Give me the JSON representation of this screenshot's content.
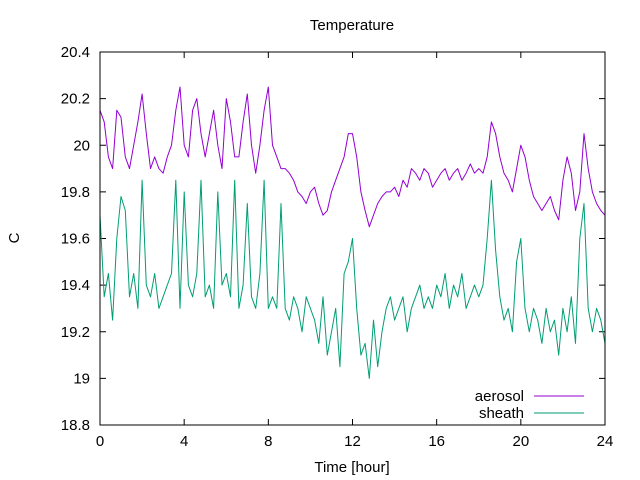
{
  "chart_data": {
    "type": "line",
    "title": "Temperature",
    "xlabel": "Time [hour]",
    "ylabel": "C",
    "xlim": [
      0,
      24
    ],
    "ylim": [
      18.8,
      20.4
    ],
    "xticks": [
      0,
      4,
      8,
      12,
      16,
      20,
      24
    ],
    "xtick_labels": [
      "0",
      "4",
      "8",
      "12",
      "16",
      "20",
      "24"
    ],
    "yticks": [
      18.8,
      19.0,
      19.2,
      19.4,
      19.6,
      19.8,
      20.0,
      20.2,
      20.4
    ],
    "ytick_labels": [
      "18.8",
      "19",
      "19.2",
      "19.4",
      "19.6",
      "19.8",
      "20",
      "20.2",
      "20.4"
    ],
    "grid": false,
    "legend_position": "bottom-right",
    "series": [
      {
        "name": "aerosol",
        "color": "#9400d3",
        "x": [
          0,
          0.2,
          0.4,
          0.6,
          0.8,
          1.0,
          1.2,
          1.4,
          1.6,
          1.8,
          2.0,
          2.2,
          2.4,
          2.6,
          2.8,
          3.0,
          3.2,
          3.4,
          3.6,
          3.8,
          4.0,
          4.2,
          4.4,
          4.6,
          4.8,
          5.0,
          5.2,
          5.4,
          5.6,
          5.8,
          6.0,
          6.2,
          6.4,
          6.6,
          6.8,
          7.0,
          7.2,
          7.4,
          7.6,
          7.8,
          8.0,
          8.2,
          8.4,
          8.6,
          8.8,
          9.0,
          9.2,
          9.4,
          9.6,
          9.8,
          10.0,
          10.2,
          10.4,
          10.6,
          10.8,
          11.0,
          11.2,
          11.4,
          11.6,
          11.8,
          12.0,
          12.2,
          12.4,
          12.6,
          12.8,
          13.0,
          13.2,
          13.4,
          13.6,
          13.8,
          14.0,
          14.2,
          14.4,
          14.6,
          14.8,
          15.0,
          15.2,
          15.4,
          15.6,
          15.8,
          16.0,
          16.2,
          16.4,
          16.6,
          16.8,
          17.0,
          17.2,
          17.4,
          17.6,
          17.8,
          18.0,
          18.2,
          18.4,
          18.6,
          18.8,
          19.0,
          19.2,
          19.4,
          19.6,
          19.8,
          20.0,
          20.2,
          20.4,
          20.6,
          20.8,
          21.0,
          21.2,
          21.4,
          21.6,
          21.8,
          22.0,
          22.2,
          22.4,
          22.6,
          22.8,
          23.0,
          23.2,
          23.4,
          23.6,
          23.8,
          24.0
        ],
        "y": [
          20.15,
          20.1,
          19.95,
          19.9,
          20.15,
          20.12,
          19.95,
          19.9,
          20.0,
          20.1,
          20.22,
          20.05,
          19.9,
          19.95,
          19.9,
          19.88,
          19.95,
          20.0,
          20.15,
          20.25,
          20.0,
          19.95,
          20.15,
          20.2,
          20.05,
          19.95,
          20.05,
          20.15,
          20.0,
          19.9,
          20.2,
          20.1,
          19.95,
          19.95,
          20.1,
          20.22,
          20.0,
          19.88,
          20.0,
          20.15,
          20.25,
          20.0,
          19.95,
          19.9,
          19.9,
          19.88,
          19.85,
          19.8,
          19.78,
          19.75,
          19.8,
          19.82,
          19.75,
          19.7,
          19.72,
          19.8,
          19.85,
          19.9,
          19.95,
          20.05,
          20.05,
          19.95,
          19.8,
          19.72,
          19.65,
          19.7,
          19.75,
          19.78,
          19.8,
          19.8,
          19.82,
          19.78,
          19.85,
          19.82,
          19.9,
          19.88,
          19.85,
          19.9,
          19.88,
          19.82,
          19.85,
          19.88,
          19.9,
          19.85,
          19.88,
          19.9,
          19.85,
          19.88,
          19.92,
          19.88,
          19.9,
          19.88,
          19.95,
          20.1,
          20.05,
          19.95,
          19.88,
          19.85,
          19.8,
          19.9,
          20.0,
          19.95,
          19.85,
          19.78,
          19.75,
          19.72,
          19.75,
          19.78,
          19.72,
          19.68,
          19.85,
          19.95,
          19.88,
          19.72,
          19.8,
          20.05,
          19.9,
          19.8,
          19.75,
          19.72,
          19.7
        ]
      },
      {
        "name": "sheath",
        "color": "#009e73",
        "x": [
          0,
          0.2,
          0.4,
          0.6,
          0.8,
          1.0,
          1.2,
          1.4,
          1.6,
          1.8,
          2.0,
          2.2,
          2.4,
          2.6,
          2.8,
          3.0,
          3.2,
          3.4,
          3.6,
          3.8,
          4.0,
          4.2,
          4.4,
          4.6,
          4.8,
          5.0,
          5.2,
          5.4,
          5.6,
          5.8,
          6.0,
          6.2,
          6.4,
          6.6,
          6.8,
          7.0,
          7.2,
          7.4,
          7.6,
          7.8,
          8.0,
          8.2,
          8.4,
          8.6,
          8.8,
          9.0,
          9.2,
          9.4,
          9.6,
          9.8,
          10.0,
          10.2,
          10.4,
          10.6,
          10.8,
          11.0,
          11.2,
          11.4,
          11.6,
          11.8,
          12.0,
          12.2,
          12.4,
          12.6,
          12.8,
          13.0,
          13.2,
          13.4,
          13.6,
          13.8,
          14.0,
          14.2,
          14.4,
          14.6,
          14.8,
          15.0,
          15.2,
          15.4,
          15.6,
          15.8,
          16.0,
          16.2,
          16.4,
          16.6,
          16.8,
          17.0,
          17.2,
          17.4,
          17.6,
          17.8,
          18.0,
          18.2,
          18.4,
          18.6,
          18.8,
          19.0,
          19.2,
          19.4,
          19.6,
          19.8,
          20.0,
          20.2,
          20.4,
          20.6,
          20.8,
          21.0,
          21.2,
          21.4,
          21.6,
          21.8,
          22.0,
          22.2,
          22.4,
          22.6,
          22.8,
          23.0,
          23.2,
          23.4,
          23.6,
          23.8,
          24.0
        ],
        "y": [
          19.7,
          19.35,
          19.45,
          19.25,
          19.6,
          19.78,
          19.72,
          19.35,
          19.45,
          19.3,
          19.85,
          19.4,
          19.35,
          19.45,
          19.3,
          19.35,
          19.4,
          19.45,
          19.85,
          19.3,
          19.8,
          19.4,
          19.35,
          19.45,
          19.85,
          19.35,
          19.4,
          19.3,
          19.8,
          19.4,
          19.45,
          19.35,
          19.85,
          19.3,
          19.4,
          19.75,
          19.35,
          19.3,
          19.45,
          19.85,
          19.3,
          19.35,
          19.3,
          19.75,
          19.3,
          19.25,
          19.35,
          19.3,
          19.2,
          19.35,
          19.3,
          19.25,
          19.15,
          19.35,
          19.1,
          19.2,
          19.3,
          19.05,
          19.45,
          19.5,
          19.6,
          19.3,
          19.1,
          19.15,
          19.0,
          19.25,
          19.05,
          19.2,
          19.3,
          19.35,
          19.25,
          19.3,
          19.35,
          19.2,
          19.3,
          19.35,
          19.4,
          19.3,
          19.35,
          19.3,
          19.4,
          19.35,
          19.45,
          19.3,
          19.4,
          19.35,
          19.45,
          19.3,
          19.35,
          19.4,
          19.35,
          19.4,
          19.6,
          19.85,
          19.55,
          19.35,
          19.25,
          19.3,
          19.2,
          19.5,
          19.6,
          19.3,
          19.2,
          19.3,
          19.25,
          19.15,
          19.3,
          19.2,
          19.25,
          19.1,
          19.3,
          19.2,
          19.35,
          19.15,
          19.6,
          19.75,
          19.3,
          19.2,
          19.3,
          19.25,
          19.15
        ]
      }
    ]
  }
}
